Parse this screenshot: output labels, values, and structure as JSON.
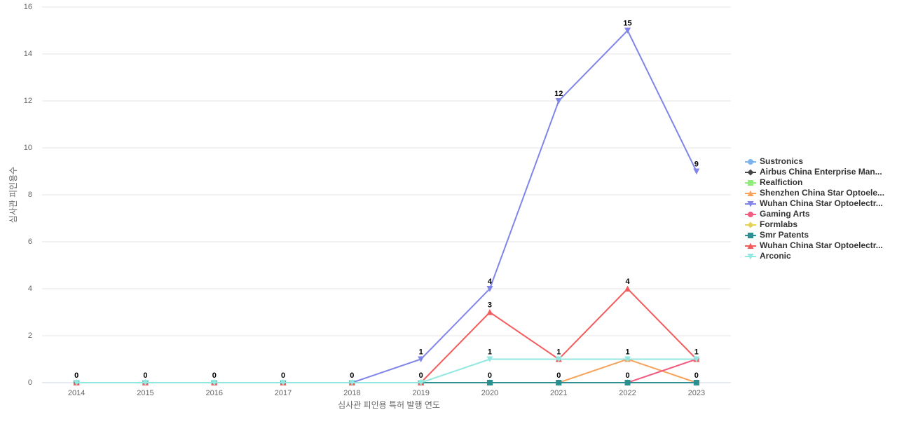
{
  "chart_data": {
    "type": "line",
    "x_label": "심사관 피인용 특허 발행 연도",
    "y_label": "심사관 피인용수",
    "categories": [
      "2014",
      "2015",
      "2016",
      "2017",
      "2018",
      "2019",
      "2020",
      "2021",
      "2022",
      "2023"
    ],
    "ylim": [
      0,
      16
    ],
    "yticks": [
      0,
      2,
      4,
      6,
      8,
      10,
      12,
      14,
      16
    ],
    "grid": true,
    "legend": "right",
    "series": [
      {
        "name": "Sustronics",
        "color": "#7cb5ec",
        "marker": "circle",
        "values": [
          0,
          0,
          0,
          0,
          0,
          0,
          0,
          0,
          0,
          0
        ]
      },
      {
        "name": "Airbus China Enterprise Man...",
        "color": "#434348",
        "marker": "diamond",
        "values": [
          0,
          0,
          0,
          0,
          0,
          0,
          0,
          0,
          0,
          0
        ]
      },
      {
        "name": "Realfiction",
        "color": "#90ed7d",
        "marker": "square",
        "values": [
          0,
          0,
          0,
          0,
          0,
          0,
          0,
          0,
          0,
          0
        ]
      },
      {
        "name": "Shenzhen China Star Optoele...",
        "color": "#f7a35c",
        "marker": "triangle",
        "values": [
          0,
          0,
          0,
          0,
          0,
          0,
          0,
          0,
          1,
          0
        ]
      },
      {
        "name": "Wuhan China Star Optoelectr...",
        "color": "#8085e9",
        "marker": "triangle-down",
        "values": [
          0,
          0,
          0,
          0,
          0,
          1,
          4,
          12,
          15,
          9
        ]
      },
      {
        "name": "Gaming Arts",
        "color": "#f15c80",
        "marker": "circle",
        "values": [
          0,
          0,
          0,
          0,
          0,
          0,
          0,
          0,
          0,
          1
        ]
      },
      {
        "name": "Formlabs",
        "color": "#e4d354",
        "marker": "diamond",
        "values": [
          0,
          0,
          0,
          0,
          0,
          0,
          0,
          0,
          0,
          0
        ]
      },
      {
        "name": "Smr Patents",
        "color": "#2b908f",
        "marker": "square",
        "values": [
          0,
          0,
          0,
          0,
          0,
          0,
          0,
          0,
          0,
          0
        ]
      },
      {
        "name": "Wuhan China Star Optoelectr...",
        "color": "#f45b5b",
        "marker": "triangle",
        "values": [
          0,
          0,
          0,
          0,
          0,
          0,
          3,
          1,
          4,
          1
        ]
      },
      {
        "name": "Arconic",
        "color": "#91e8e1",
        "marker": "triangle-down",
        "values": [
          0,
          0,
          0,
          0,
          0,
          0,
          1,
          1,
          1,
          1
        ]
      }
    ]
  }
}
